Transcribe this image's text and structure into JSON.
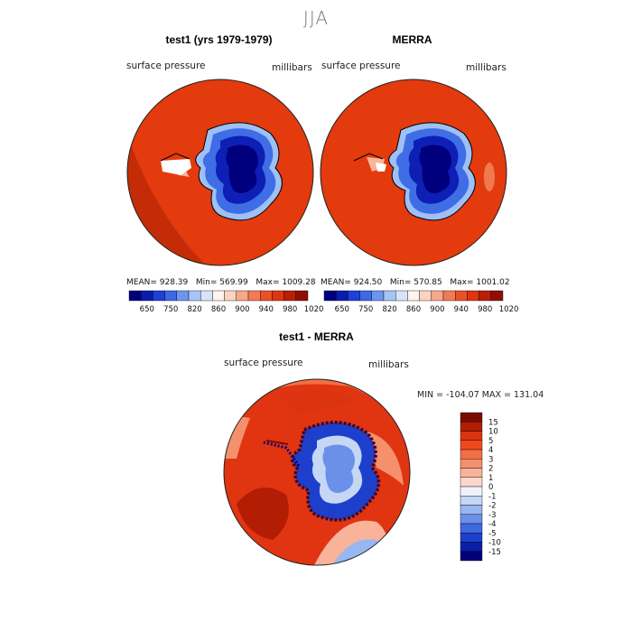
{
  "season": "JJA",
  "panel1": {
    "title": "test1 (yrs 1979-1979)",
    "variable": "surface pressure",
    "units": "millibars",
    "stats": {
      "mean_label": "MEAN=",
      "mean": "928.39",
      "min_label": "Min=",
      "min": "569.99",
      "max_label": "Max=",
      "max": "1009.28"
    }
  },
  "panel2": {
    "title": "MERRA",
    "variable": "surface pressure",
    "units": "millibars",
    "stats": {
      "mean_label": "MEAN=",
      "mean": "924.50",
      "min_label": "Min=",
      "min": "570.85",
      "max_label": "Max=",
      "max": "1001.02"
    }
  },
  "panel3": {
    "title": "test1 - MERRA",
    "variable": "surface pressure",
    "units": "millibars",
    "stats_text": "MIN = -104.07  MAX = 131.04"
  },
  "chart_data": [
    {
      "type": "heatmap",
      "projection": "south-polar-stereographic",
      "title": "test1 (yrs 1979-1979)",
      "variable": "surface pressure",
      "units": "millibars",
      "mean": 928.39,
      "min": 569.99,
      "max": 1009.28,
      "colorbar_ticks": [
        650,
        750,
        820,
        860,
        900,
        940,
        980,
        1020
      ],
      "colorbar_colors": [
        "#00007f",
        "#0a1bb0",
        "#1e40d8",
        "#3d68e6",
        "#6e94ef",
        "#a6c4f7",
        "#d6e4fb",
        "#fff4ee",
        "#fcd3c0",
        "#f7a888",
        "#f27a55",
        "#ec5126",
        "#e03510",
        "#b81f06",
        "#8e1002"
      ]
    },
    {
      "type": "heatmap",
      "projection": "south-polar-stereographic",
      "title": "MERRA",
      "variable": "surface pressure",
      "units": "millibars",
      "mean": 924.5,
      "min": 570.85,
      "max": 1001.02,
      "colorbar_ticks": [
        650,
        750,
        820,
        860,
        900,
        940,
        980,
        1020
      ],
      "colorbar_colors": [
        "#00007f",
        "#0a1bb0",
        "#1e40d8",
        "#3d68e6",
        "#6e94ef",
        "#a6c4f7",
        "#d6e4fb",
        "#fff4ee",
        "#fcd3c0",
        "#f7a888",
        "#f27a55",
        "#ec5126",
        "#e03510",
        "#b81f06",
        "#8e1002"
      ]
    },
    {
      "type": "heatmap",
      "projection": "south-polar-stereographic",
      "title": "test1 - MERRA",
      "variable": "surface pressure",
      "units": "millibars",
      "min": -104.07,
      "max": 131.04,
      "colorbar_ticks": [
        "15",
        "10",
        "5",
        "4",
        "3",
        "2",
        "1",
        "0",
        "-1",
        "-2",
        "-3",
        "-4",
        "-5",
        "-10",
        "-15"
      ],
      "colorbar_colors": [
        "#7a0c00",
        "#b31d04",
        "#dc3410",
        "#ef4a1c",
        "#f26e44",
        "#f5906d",
        "#f8b39a",
        "#fbd8cb",
        "#eef2fb",
        "#c6d7f6",
        "#98b6f1",
        "#6a90ea",
        "#3d68e0",
        "#1d40cc",
        "#0a1fa8",
        "#00007a"
      ]
    }
  ]
}
